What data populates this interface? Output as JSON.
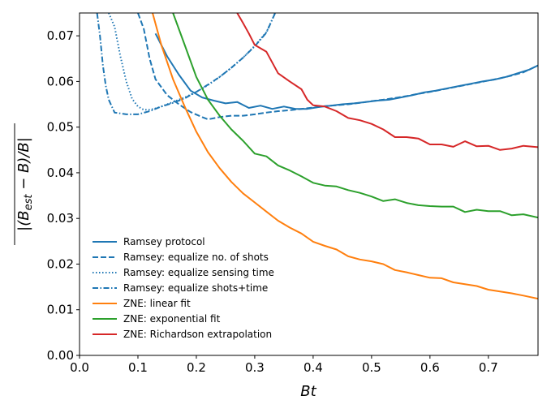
{
  "chart_data": {
    "type": "line",
    "title": "",
    "xlabel": "Bt",
    "ylabel": "|(B_est − B)/B| (overlined)",
    "ylabel_parts": {
      "open": "|(B",
      "sub": "est",
      "mid": " − B)/B|"
    },
    "xlim": [
      0.0,
      0.785
    ],
    "ylim": [
      0.0,
      0.075
    ],
    "xticks": [
      "0.0",
      "0.1",
      "0.2",
      "0.3",
      "0.4",
      "0.5",
      "0.6",
      "0.7"
    ],
    "xtick_values": [
      0.0,
      0.1,
      0.2,
      0.3,
      0.4,
      0.5,
      0.6,
      0.7
    ],
    "yticks": [
      "0.00",
      "0.01",
      "0.02",
      "0.03",
      "0.04",
      "0.05",
      "0.06",
      "0.07"
    ],
    "ytick_values": [
      0.0,
      0.01,
      0.02,
      0.03,
      0.04,
      0.05,
      0.06,
      0.07
    ],
    "legend_position": "lower-left",
    "series": [
      {
        "name": "Ramsey protocol",
        "color": "#1f77b4",
        "dash": "solid",
        "x": [
          0.13,
          0.15,
          0.17,
          0.19,
          0.21,
          0.23,
          0.25,
          0.27,
          0.29,
          0.31,
          0.33,
          0.35,
          0.37,
          0.39,
          0.41,
          0.43,
          0.45,
          0.47,
          0.49,
          0.51,
          0.53,
          0.55,
          0.57,
          0.59,
          0.61,
          0.63,
          0.65,
          0.67,
          0.69,
          0.71,
          0.73,
          0.75,
          0.77,
          0.785
        ],
        "y": [
          0.0705,
          0.0655,
          0.0615,
          0.058,
          0.0565,
          0.0558,
          0.0552,
          0.0555,
          0.0542,
          0.0547,
          0.054,
          0.0545,
          0.054,
          0.054,
          0.0544,
          0.0547,
          0.055,
          0.0552,
          0.0555,
          0.0558,
          0.056,
          0.0565,
          0.057,
          0.0576,
          0.058,
          0.0585,
          0.059,
          0.0595,
          0.06,
          0.0604,
          0.061,
          0.0618,
          0.0626,
          0.0635
        ]
      },
      {
        "name": "Ramsey: equalize no. of shots",
        "color": "#1f77b4",
        "dash": "dashed",
        "x": [
          0.1,
          0.11,
          0.12,
          0.13,
          0.15,
          0.17,
          0.19,
          0.21,
          0.22,
          0.24,
          0.26,
          0.28,
          0.3,
          0.32,
          0.34,
          0.36,
          0.38,
          0.4,
          0.42,
          0.44,
          0.46,
          0.48,
          0.5,
          0.52,
          0.54,
          0.56,
          0.58,
          0.6,
          0.62,
          0.64,
          0.66,
          0.68,
          0.7,
          0.72,
          0.74,
          0.76,
          0.785
        ],
        "y": [
          0.075,
          0.0715,
          0.065,
          0.0605,
          0.057,
          0.055,
          0.0533,
          0.0522,
          0.0517,
          0.0522,
          0.0525,
          0.0525,
          0.0528,
          0.0532,
          0.0535,
          0.0537,
          0.054,
          0.0543,
          0.0546,
          0.0548,
          0.055,
          0.0553,
          0.0557,
          0.056,
          0.0564,
          0.0568,
          0.0573,
          0.0577,
          0.0582,
          0.0587,
          0.0592,
          0.0597,
          0.0602,
          0.0607,
          0.0613,
          0.062,
          0.0635
        ]
      },
      {
        "name": "Ramsey: equalize sensing time",
        "color": "#1f77b4",
        "dash": "dotted",
        "x": [
          0.05,
          0.06,
          0.07,
          0.08,
          0.09,
          0.1,
          0.11,
          0.12,
          0.13,
          0.14,
          0.15,
          0.16,
          0.18,
          0.2,
          0.22,
          0.24,
          0.26,
          0.28,
          0.3,
          0.32,
          0.335
        ],
        "y": [
          0.075,
          0.072,
          0.0655,
          0.06,
          0.0562,
          0.0545,
          0.0538,
          0.0538,
          0.0541,
          0.0545,
          0.055,
          0.0555,
          0.0565,
          0.0577,
          0.0592,
          0.061,
          0.063,
          0.0652,
          0.0678,
          0.0708,
          0.075
        ]
      },
      {
        "name": "Ramsey: equalize shots+time",
        "color": "#1f77b4",
        "dash": "dashdot",
        "x": [
          0.03,
          0.035,
          0.04,
          0.045,
          0.05,
          0.06,
          0.07,
          0.08,
          0.09,
          0.1,
          0.12,
          0.14,
          0.16,
          0.18,
          0.2,
          0.22,
          0.24,
          0.26,
          0.28,
          0.3,
          0.32,
          0.335
        ],
        "y": [
          0.075,
          0.07,
          0.0635,
          0.059,
          0.056,
          0.0532,
          0.053,
          0.0528,
          0.0528,
          0.0528,
          0.0535,
          0.0545,
          0.0553,
          0.0563,
          0.0577,
          0.0593,
          0.061,
          0.063,
          0.0652,
          0.0677,
          0.0707,
          0.075
        ]
      },
      {
        "name": "ZNE: linear fit",
        "color": "#ff7f0e",
        "dash": "solid",
        "x": [
          0.125,
          0.14,
          0.16,
          0.18,
          0.2,
          0.22,
          0.24,
          0.26,
          0.28,
          0.3,
          0.32,
          0.34,
          0.36,
          0.38,
          0.4,
          0.42,
          0.44,
          0.46,
          0.48,
          0.5,
          0.52,
          0.54,
          0.56,
          0.58,
          0.6,
          0.62,
          0.64,
          0.66,
          0.68,
          0.7,
          0.72,
          0.74,
          0.76,
          0.785
        ],
        "y": [
          0.075,
          0.068,
          0.0605,
          0.0545,
          0.049,
          0.0445,
          0.041,
          0.038,
          0.0355,
          0.0335,
          0.0315,
          0.0295,
          0.028,
          0.0267,
          0.0249,
          0.024,
          0.0232,
          0.0217,
          0.021,
          0.0206,
          0.02,
          0.0187,
          0.0182,
          0.0176,
          0.017,
          0.0169,
          0.016,
          0.0156,
          0.0152,
          0.0144,
          0.014,
          0.0136,
          0.0131,
          0.0124
        ]
      },
      {
        "name": "ZNE: exponential fit",
        "color": "#2ca02c",
        "dash": "solid",
        "x": [
          0.16,
          0.18,
          0.2,
          0.22,
          0.24,
          0.26,
          0.28,
          0.3,
          0.32,
          0.34,
          0.36,
          0.38,
          0.4,
          0.42,
          0.44,
          0.46,
          0.48,
          0.5,
          0.52,
          0.54,
          0.56,
          0.58,
          0.6,
          0.62,
          0.64,
          0.66,
          0.68,
          0.7,
          0.72,
          0.74,
          0.76,
          0.785
        ],
        "y": [
          0.075,
          0.068,
          0.061,
          0.056,
          0.0525,
          0.0495,
          0.047,
          0.0442,
          0.0436,
          0.0416,
          0.0405,
          0.0392,
          0.0378,
          0.0372,
          0.037,
          0.0362,
          0.0356,
          0.0348,
          0.0338,
          0.0342,
          0.0334,
          0.0329,
          0.0327,
          0.0326,
          0.0326,
          0.0314,
          0.0319,
          0.0316,
          0.0316,
          0.0307,
          0.0309,
          0.0302
        ]
      },
      {
        "name": "ZNE: Richardson extrapolation",
        "color": "#d62728",
        "dash": "solid",
        "x": [
          0.27,
          0.28,
          0.29,
          0.3,
          0.32,
          0.34,
          0.36,
          0.38,
          0.39,
          0.4,
          0.42,
          0.44,
          0.46,
          0.48,
          0.5,
          0.52,
          0.54,
          0.56,
          0.58,
          0.6,
          0.62,
          0.64,
          0.66,
          0.68,
          0.7,
          0.72,
          0.74,
          0.76,
          0.785
        ],
        "y": [
          0.075,
          0.0728,
          0.0705,
          0.068,
          0.0665,
          0.0618,
          0.06,
          0.0583,
          0.056,
          0.0548,
          0.0545,
          0.0535,
          0.052,
          0.0515,
          0.0507,
          0.0495,
          0.0478,
          0.0478,
          0.0475,
          0.0462,
          0.0462,
          0.0457,
          0.0469,
          0.0458,
          0.0459,
          0.045,
          0.0453,
          0.0459,
          0.0456
        ]
      }
    ]
  }
}
